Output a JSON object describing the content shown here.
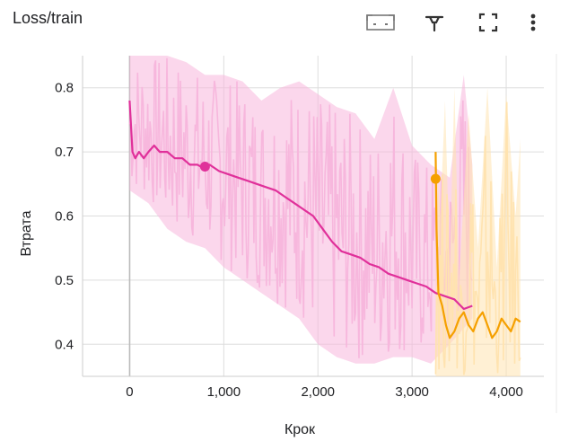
{
  "header": {
    "title": "Loss/train",
    "tools": [
      {
        "name": "fit-domain-icon"
      },
      {
        "name": "pin-icon"
      },
      {
        "name": "fullscreen-icon"
      },
      {
        "name": "more-vert-icon"
      }
    ]
  },
  "colors": {
    "series_pink": "#e0309a",
    "series_pink_raw": "#f7b7dd",
    "series_orange": "#f5a000",
    "series_orange_raw": "#ffe3b0",
    "grid": "#dddddd"
  },
  "chart_data": {
    "type": "line",
    "title": "Loss/train",
    "xlabel": "Крок",
    "ylabel": "Втрата",
    "xlim": [
      -500,
      4400
    ],
    "ylim": [
      0.35,
      0.85
    ],
    "xticks": [
      "0",
      "1,000",
      "2,000",
      "3,000",
      "4,000"
    ],
    "xtick_values": [
      0,
      1000,
      2000,
      3000,
      4000
    ],
    "yticks": [
      "0.4",
      "0.5",
      "0.6",
      "0.7",
      "0.8"
    ],
    "ytick_values": [
      0.4,
      0.5,
      0.6,
      0.7,
      0.8
    ],
    "grid": true,
    "series": [
      {
        "smoothed": [
          [
            0,
            0.78
          ],
          [
            30,
            0.7
          ],
          [
            60,
            0.69
          ],
          [
            100,
            0.7
          ],
          [
            150,
            0.69
          ],
          [
            200,
            0.7
          ],
          [
            260,
            0.71
          ],
          [
            320,
            0.7
          ],
          [
            400,
            0.7
          ],
          [
            480,
            0.69
          ],
          [
            560,
            0.69
          ],
          [
            640,
            0.68
          ],
          [
            720,
            0.68
          ],
          [
            780,
            0.675
          ],
          [
            850,
            0.68
          ],
          [
            950,
            0.67
          ],
          [
            1050,
            0.665
          ],
          [
            1150,
            0.66
          ],
          [
            1250,
            0.655
          ],
          [
            1350,
            0.65
          ],
          [
            1450,
            0.645
          ],
          [
            1550,
            0.64
          ],
          [
            1650,
            0.63
          ],
          [
            1750,
            0.62
          ],
          [
            1850,
            0.61
          ],
          [
            1950,
            0.6
          ],
          [
            2050,
            0.58
          ],
          [
            2150,
            0.56
          ],
          [
            2250,
            0.545
          ],
          [
            2350,
            0.54
          ],
          [
            2450,
            0.535
          ],
          [
            2550,
            0.525
          ],
          [
            2650,
            0.52
          ],
          [
            2750,
            0.51
          ],
          [
            2850,
            0.505
          ],
          [
            2950,
            0.5
          ],
          [
            3050,
            0.495
          ],
          [
            3150,
            0.49
          ],
          [
            3250,
            0.48
          ],
          [
            3350,
            0.475
          ],
          [
            3450,
            0.47
          ],
          [
            3550,
            0.455
          ],
          [
            3640,
            0.46
          ]
        ],
        "raw_min": [
          [
            0,
            0.64
          ],
          [
            200,
            0.62
          ],
          [
            400,
            0.58
          ],
          [
            600,
            0.56
          ],
          [
            800,
            0.55
          ],
          [
            1000,
            0.52
          ],
          [
            1200,
            0.5
          ],
          [
            1400,
            0.48
          ],
          [
            1600,
            0.46
          ],
          [
            1800,
            0.44
          ],
          [
            2000,
            0.4
          ],
          [
            2200,
            0.38
          ],
          [
            2400,
            0.37
          ],
          [
            2600,
            0.37
          ],
          [
            2800,
            0.38
          ],
          [
            3000,
            0.38
          ],
          [
            3200,
            0.37
          ],
          [
            3400,
            0.4
          ],
          [
            3640,
            0.44
          ]
        ],
        "raw_max": [
          [
            0,
            0.85
          ],
          [
            200,
            0.85
          ],
          [
            400,
            0.85
          ],
          [
            600,
            0.84
          ],
          [
            800,
            0.82
          ],
          [
            1000,
            0.82
          ],
          [
            1200,
            0.81
          ],
          [
            1400,
            0.78
          ],
          [
            1600,
            0.8
          ],
          [
            1800,
            0.81
          ],
          [
            2000,
            0.79
          ],
          [
            2200,
            0.77
          ],
          [
            2400,
            0.76
          ],
          [
            2600,
            0.72
          ],
          [
            2800,
            0.8
          ],
          [
            3000,
            0.71
          ],
          [
            3200,
            0.68
          ],
          [
            3400,
            0.66
          ],
          [
            3550,
            0.82
          ],
          [
            3640,
            0.68
          ]
        ]
      },
      {
        "smoothed": [
          [
            3250,
            0.7
          ],
          [
            3260,
            0.58
          ],
          [
            3280,
            0.48
          ],
          [
            3320,
            0.46
          ],
          [
            3360,
            0.43
          ],
          [
            3400,
            0.41
          ],
          [
            3450,
            0.42
          ],
          [
            3500,
            0.44
          ],
          [
            3550,
            0.45
          ],
          [
            3600,
            0.43
          ],
          [
            3650,
            0.42
          ],
          [
            3700,
            0.44
          ],
          [
            3750,
            0.45
          ],
          [
            3800,
            0.43
          ],
          [
            3850,
            0.41
          ],
          [
            3900,
            0.42
          ],
          [
            3950,
            0.44
          ],
          [
            4000,
            0.43
          ],
          [
            4050,
            0.42
          ],
          [
            4100,
            0.44
          ],
          [
            4150,
            0.435
          ]
        ],
        "raw_min": [
          [
            3250,
            0.35
          ],
          [
            4150,
            0.35
          ]
        ],
        "raw_max": [
          [
            3250,
            0.7
          ],
          [
            3300,
            0.6
          ],
          [
            3350,
            0.78
          ],
          [
            3400,
            0.52
          ],
          [
            3450,
            0.8
          ],
          [
            3500,
            0.5
          ],
          [
            3600,
            0.76
          ],
          [
            3700,
            0.55
          ],
          [
            3800,
            0.8
          ],
          [
            3900,
            0.52
          ],
          [
            4000,
            0.79
          ],
          [
            4100,
            0.6
          ],
          [
            4150,
            0.72
          ]
        ]
      }
    ],
    "markers": [
      {
        "series": 0,
        "x": 800,
        "y": 0.677
      },
      {
        "series": 1,
        "x": 3250,
        "y": 0.658
      }
    ]
  }
}
